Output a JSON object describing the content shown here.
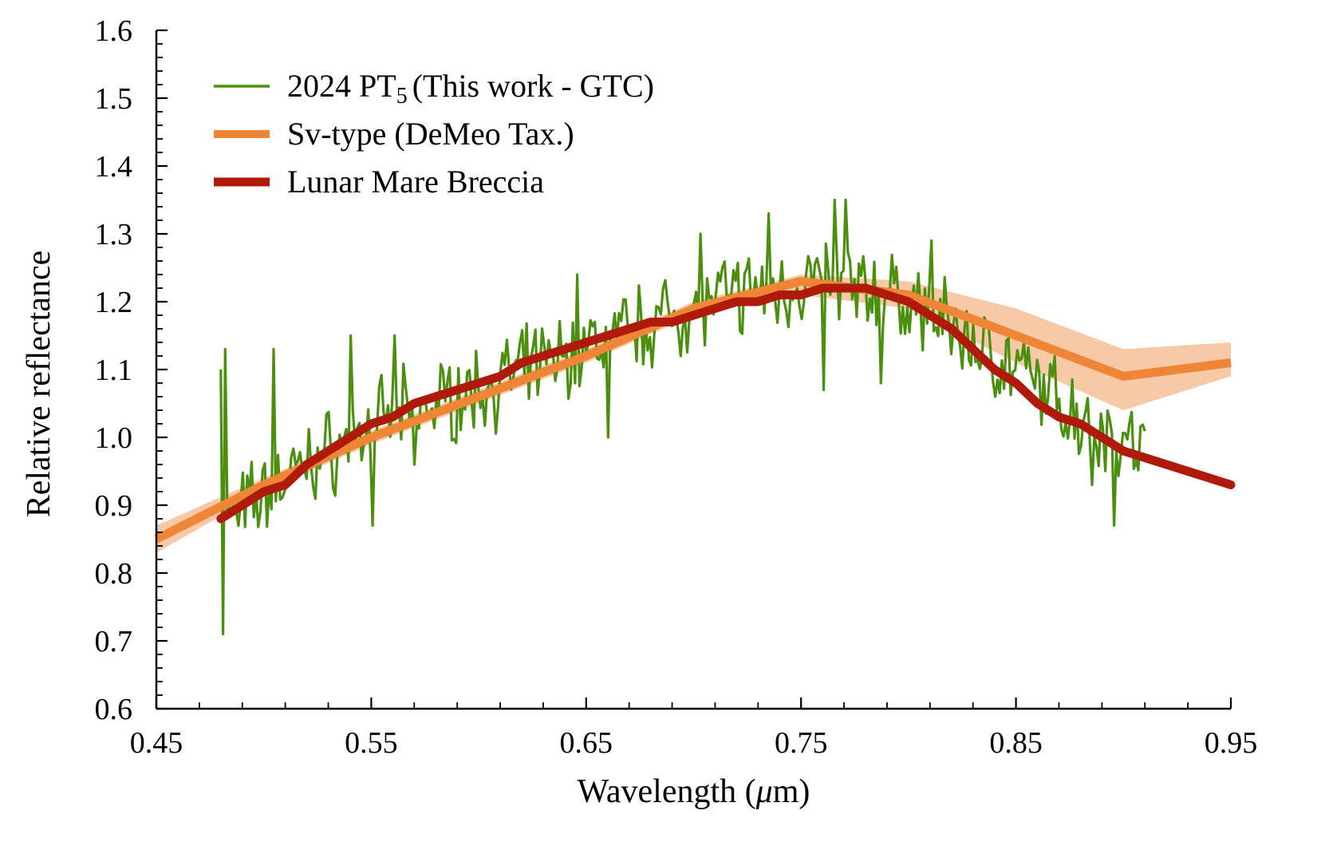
{
  "chart_data": {
    "type": "line",
    "title": "",
    "xlabel_main": "Wavelength (",
    "xlabel_unit": "μ",
    "xlabel_end": "m)",
    "ylabel": "Relative reflectance",
    "xlim": [
      0.45,
      0.95
    ],
    "ylim": [
      0.6,
      1.6
    ],
    "xticks": [
      0.45,
      0.55,
      0.65,
      0.75,
      0.85,
      0.95
    ],
    "xtick_labels": [
      "0.45",
      "0.55",
      "0.65",
      "0.75",
      "0.85",
      "0.95"
    ],
    "xminor_step": 0.02,
    "yticks": [
      0.6,
      0.7,
      0.8,
      0.9,
      1.0,
      1.1,
      1.2,
      1.3,
      1.4,
      1.5,
      1.6
    ],
    "ytick_labels": [
      "0.6",
      "0.7",
      "0.8",
      "0.9",
      "1.0",
      "1.1",
      "1.2",
      "1.3",
      "1.4",
      "1.5",
      "1.6"
    ],
    "legend_position": "top-left",
    "legend": [
      {
        "label_main": "2024 PT",
        "label_sub": "5",
        "label_end": "(This work - GTC)",
        "color": "#4b8f0f"
      },
      {
        "label_main": "Sv-type (DeMeo Tax.)",
        "label_sub": "",
        "label_end": "",
        "color": "#ef8537"
      },
      {
        "label_main": "Lunar Mare Breccia",
        "label_sub": "",
        "label_end": "",
        "color": "#b01a0a"
      }
    ],
    "series": [
      {
        "name": "2024 PT5 (This work - GTC)",
        "color": "#4b8f0f",
        "x_start": 0.48,
        "x_end": 0.91,
        "trend_x": [
          0.48,
          0.52,
          0.56,
          0.6,
          0.64,
          0.68,
          0.72,
          0.76,
          0.8,
          0.84,
          0.88,
          0.91
        ],
        "trend_y": [
          0.87,
          0.96,
          1.03,
          1.07,
          1.12,
          1.17,
          1.21,
          1.23,
          1.2,
          1.12,
          1.03,
          0.98
        ],
        "noise_amplitude": 0.075,
        "spikes_x": [
          0.4805,
          0.4812,
          0.4825,
          0.5045,
          0.5405,
          0.5505,
          0.5605,
          0.5705,
          0.6455,
          0.6605,
          0.7035,
          0.7345,
          0.7605,
          0.7655,
          0.7705,
          0.7875,
          0.8105,
          0.8855,
          0.8955
        ],
        "spikes_y": [
          1.1,
          0.71,
          1.13,
          1.13,
          1.15,
          0.87,
          1.15,
          0.96,
          1.24,
          1.0,
          1.3,
          1.33,
          1.07,
          1.35,
          1.35,
          1.08,
          1.29,
          0.93,
          0.87
        ]
      },
      {
        "name": "Sv-type (DeMeo Tax.)",
        "color": "#ef8537",
        "band_color": "#f6bf98",
        "x": [
          0.45,
          0.5,
          0.55,
          0.6,
          0.65,
          0.7,
          0.75,
          0.8,
          0.85,
          0.9,
          0.95
        ],
        "y": [
          0.85,
          0.93,
          1.0,
          1.06,
          1.12,
          1.19,
          1.23,
          1.21,
          1.15,
          1.09,
          1.11
        ],
        "y_lower": [
          0.83,
          0.92,
          0.99,
          1.05,
          1.11,
          1.18,
          1.21,
          1.19,
          1.11,
          1.04,
          1.09
        ],
        "y_upper": [
          0.87,
          0.94,
          1.01,
          1.07,
          1.13,
          1.2,
          1.24,
          1.23,
          1.19,
          1.13,
          1.14
        ]
      },
      {
        "name": "Lunar Mare Breccia",
        "color": "#b01a0a",
        "x": [
          0.48,
          0.49,
          0.5,
          0.51,
          0.52,
          0.53,
          0.54,
          0.55,
          0.56,
          0.57,
          0.58,
          0.59,
          0.6,
          0.61,
          0.62,
          0.63,
          0.64,
          0.65,
          0.66,
          0.67,
          0.68,
          0.69,
          0.7,
          0.71,
          0.72,
          0.73,
          0.74,
          0.75,
          0.76,
          0.77,
          0.78,
          0.79,
          0.8,
          0.81,
          0.82,
          0.83,
          0.84,
          0.85,
          0.86,
          0.87,
          0.88,
          0.89,
          0.9,
          0.91,
          0.92,
          0.93,
          0.94,
          0.95
        ],
        "y": [
          0.88,
          0.9,
          0.92,
          0.93,
          0.96,
          0.98,
          1.0,
          1.02,
          1.03,
          1.05,
          1.06,
          1.07,
          1.08,
          1.09,
          1.11,
          1.12,
          1.13,
          1.14,
          1.15,
          1.16,
          1.17,
          1.17,
          1.18,
          1.19,
          1.2,
          1.2,
          1.21,
          1.21,
          1.22,
          1.22,
          1.22,
          1.21,
          1.2,
          1.18,
          1.16,
          1.13,
          1.1,
          1.08,
          1.05,
          1.03,
          1.02,
          1.0,
          0.98,
          0.97,
          0.96,
          0.95,
          0.94,
          0.93
        ]
      }
    ]
  }
}
